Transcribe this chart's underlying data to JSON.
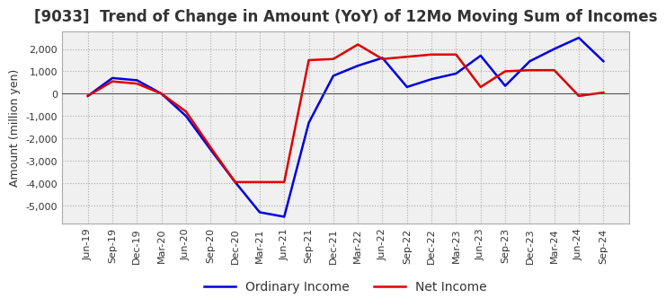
{
  "title": "[9033]  Trend of Change in Amount (YoY) of 12Mo Moving Sum of Incomes",
  "ylabel": "Amount (million yen)",
  "ylim": [
    -5800,
    2800
  ],
  "yticks": [
    -5000,
    -4000,
    -3000,
    -2000,
    -1000,
    0,
    1000,
    2000
  ],
  "background_color": "#ffffff",
  "plot_bg_color": "#f0f0f0",
  "grid_color": "#aaaaaa",
  "x_labels": [
    "Jun-19",
    "Sep-19",
    "Dec-19",
    "Mar-20",
    "Jun-20",
    "Sep-20",
    "Dec-20",
    "Mar-21",
    "Jun-21",
    "Sep-21",
    "Dec-21",
    "Mar-22",
    "Jun-22",
    "Sep-22",
    "Dec-22",
    "Mar-23",
    "Jun-23",
    "Sep-23",
    "Dec-23",
    "Mar-24",
    "Jun-24",
    "Sep-24"
  ],
  "ordinary_income": [
    -100,
    700,
    600,
    0,
    -1000,
    -2500,
    -3950,
    -5300,
    -5500,
    -1300,
    800,
    1250,
    1600,
    300,
    650,
    900,
    1700,
    350,
    1450,
    2000,
    2500,
    1450
  ],
  "net_income": [
    -100,
    550,
    450,
    0,
    -800,
    -2400,
    -3950,
    -3950,
    -3950,
    1500,
    1550,
    2200,
    1550,
    1650,
    1750,
    1750,
    300,
    1000,
    1050,
    1050,
    -100,
    50
  ],
  "ordinary_color": "#0000dd",
  "net_color": "#dd0000",
  "line_width": 1.8,
  "title_fontsize": 12,
  "label_fontsize": 9,
  "tick_fontsize": 8,
  "legend_fontsize": 10,
  "text_color": "#333333"
}
